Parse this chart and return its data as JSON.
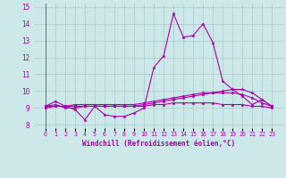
{
  "xlabel": "Windchill (Refroidissement éolien,°C)",
  "background_color": "#cce8e8",
  "line_color": "#aa00aa",
  "grid_color": "#aacccc",
  "x_labels": [
    "0",
    "1",
    "2",
    "3",
    "4",
    "5",
    "6",
    "7",
    "8",
    "9",
    "10",
    "11",
    "12",
    "13",
    "14",
    "15",
    "16",
    "17",
    "18",
    "19",
    "20",
    "21",
    "22",
    "23"
  ],
  "ylim": [
    7.8,
    15.2
  ],
  "yticks": [
    8,
    9,
    10,
    11,
    12,
    13,
    14,
    15
  ],
  "series": [
    [
      9.1,
      9.4,
      9.1,
      8.9,
      8.3,
      9.1,
      8.6,
      8.5,
      8.5,
      8.7,
      9.0,
      11.4,
      12.1,
      14.6,
      13.2,
      13.3,
      14.0,
      12.9,
      10.6,
      10.1,
      9.7,
      9.2,
      9.5,
      9.1
    ],
    [
      9.1,
      9.2,
      9.0,
      9.0,
      9.1,
      9.1,
      9.1,
      9.1,
      9.1,
      9.1,
      9.2,
      9.3,
      9.4,
      9.5,
      9.6,
      9.7,
      9.8,
      9.9,
      10.0,
      10.1,
      10.1,
      9.9,
      9.5,
      9.1
    ],
    [
      9.1,
      9.1,
      9.1,
      9.2,
      9.2,
      9.2,
      9.2,
      9.2,
      9.2,
      9.2,
      9.3,
      9.4,
      9.5,
      9.6,
      9.7,
      9.8,
      9.9,
      9.9,
      9.9,
      9.9,
      9.8,
      9.6,
      9.3,
      9.1
    ],
    [
      9.0,
      9.1,
      9.1,
      9.1,
      9.1,
      9.1,
      9.1,
      9.1,
      9.1,
      9.1,
      9.1,
      9.2,
      9.2,
      9.3,
      9.3,
      9.3,
      9.3,
      9.3,
      9.2,
      9.2,
      9.2,
      9.1,
      9.1,
      9.0
    ]
  ]
}
